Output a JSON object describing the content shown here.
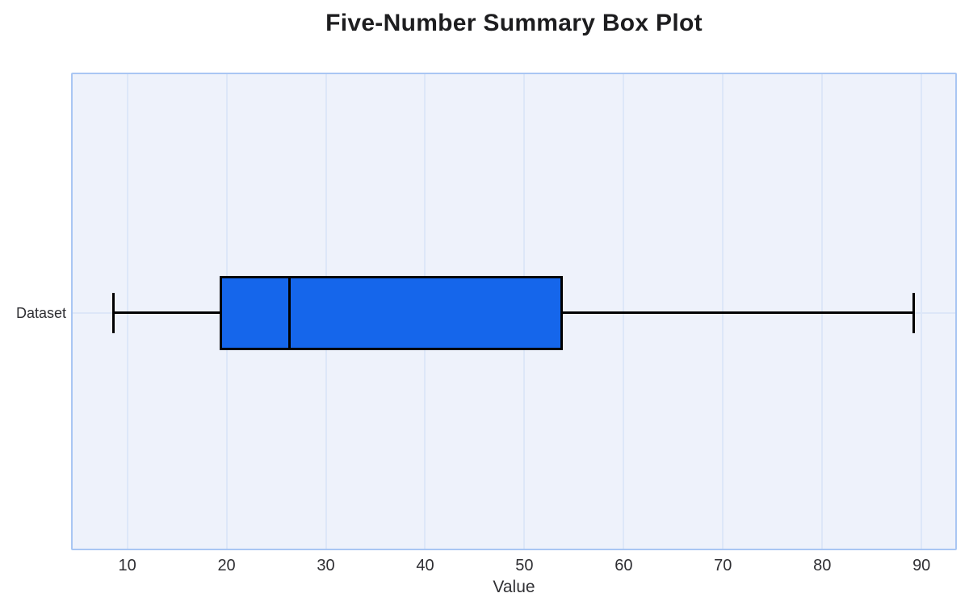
{
  "chart_data": {
    "type": "box",
    "orientation": "horizontal",
    "title": "Five-Number Summary Box Plot",
    "xlabel": "Value",
    "ylabel": "",
    "categories": [
      "Dataset"
    ],
    "series": [
      {
        "name": "Dataset",
        "min": 8.6,
        "q1": 19.3,
        "median": 26.3,
        "q3": 53.9,
        "max": 89.2
      }
    ],
    "x_ticks": [
      10,
      20,
      30,
      40,
      50,
      60,
      70,
      80,
      90
    ],
    "xlim": [
      4.5,
      93.4
    ],
    "grid": true,
    "legend_position": "none",
    "colors": {
      "box_fill": "#1566eb",
      "line": "#000000",
      "plot_background": "#eef2fb",
      "plot_border": "#a9c6f3",
      "gridline": "#dde7f8",
      "title_text": "#1d1d1f",
      "axis_text": "#2f2f33"
    }
  }
}
